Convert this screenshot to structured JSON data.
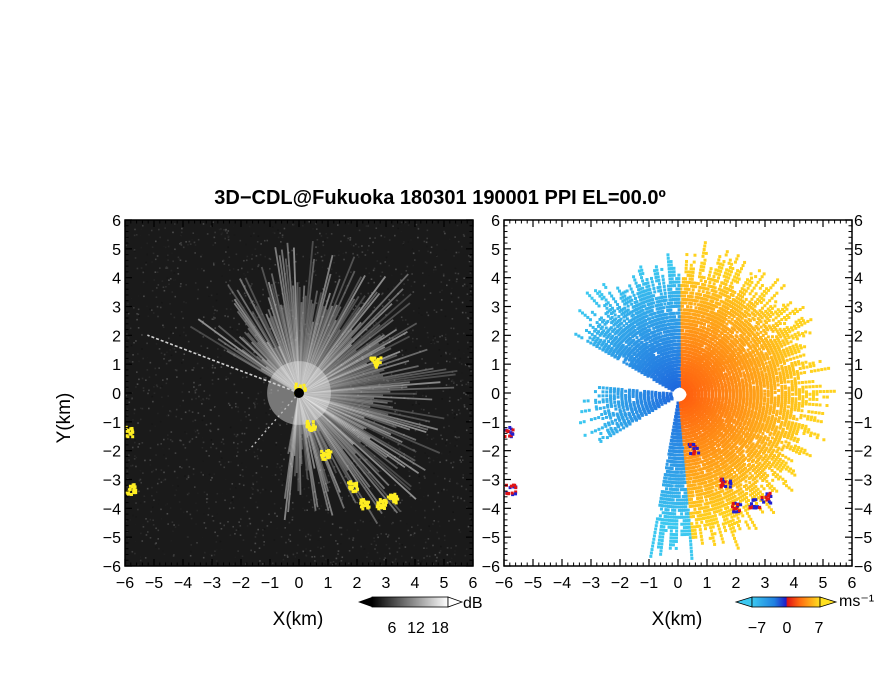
{
  "title": "3D−CDL@Fukuoka 180301 190001 PPI EL=00.0º",
  "chart_data": [
    {
      "type": "heatmap",
      "panel": "reflectivity",
      "xlabel": "X(km)",
      "ylabel": "Y(km)",
      "xlim": [
        -6,
        6
      ],
      "ylim": [
        -6,
        6
      ],
      "x_ticks": [
        "−6",
        "−5",
        "−4",
        "−3",
        "−2",
        "−1",
        "0",
        "1",
        "2",
        "3",
        "4",
        "5",
        "6"
      ],
      "y_ticks": [
        "6",
        "5",
        "4",
        "3",
        "2",
        "1",
        "0",
        "−1",
        "−2",
        "−3",
        "−4",
        "−5",
        "−6"
      ],
      "background": "#1a1a1a",
      "sector_deg": [
        -100,
        150
      ],
      "gap_deg": 158,
      "radial_beam_deg": 159,
      "extra_beam_deg": 229,
      "highlight_color": "#ffee22",
      "highlight_patches": [
        {
          "x": -5.95,
          "y": -1.3
        },
        {
          "x": -5.85,
          "y": -3.3
        },
        {
          "x": 0.0,
          "y": 0.2
        },
        {
          "x": 0.35,
          "y": -1.1
        },
        {
          "x": 0.9,
          "y": -2.1
        },
        {
          "x": 1.8,
          "y": -3.2
        },
        {
          "x": 2.2,
          "y": -3.8
        },
        {
          "x": 2.8,
          "y": -3.8
        },
        {
          "x": 3.2,
          "y": -3.6
        },
        {
          "x": 2.6,
          "y": 1.1
        }
      ],
      "colorbar": {
        "ticks": [
          "6",
          "12",
          "18"
        ],
        "unit": "dB"
      }
    },
    {
      "type": "heatmap",
      "panel": "doppler-velocity",
      "xlabel": "X(km)",
      "xlim": [
        -6,
        6
      ],
      "ylim": [
        -6,
        6
      ],
      "x_ticks": [
        "−6",
        "−5",
        "−4",
        "−3",
        "−2",
        "−1",
        "0",
        "1",
        "2",
        "3",
        "4",
        "5",
        "6"
      ],
      "y_ticks": [
        "6",
        "5",
        "4",
        "3",
        "2",
        "1",
        "0",
        "−1",
        "−2",
        "−3",
        "−4",
        "−5",
        "−6"
      ],
      "background": "#ffffff",
      "negative_color": "#1e64dc",
      "far_negative_color": "#3cc8f0",
      "positive_color": "#ff5a10",
      "far_positive_color": "#ffd21e",
      "edge_color": "#2020d0",
      "edge_red": "#e01414",
      "colorbar": {
        "ticks": [
          "−7",
          "0",
          "7"
        ],
        "unit": "ms⁻¹"
      }
    }
  ]
}
